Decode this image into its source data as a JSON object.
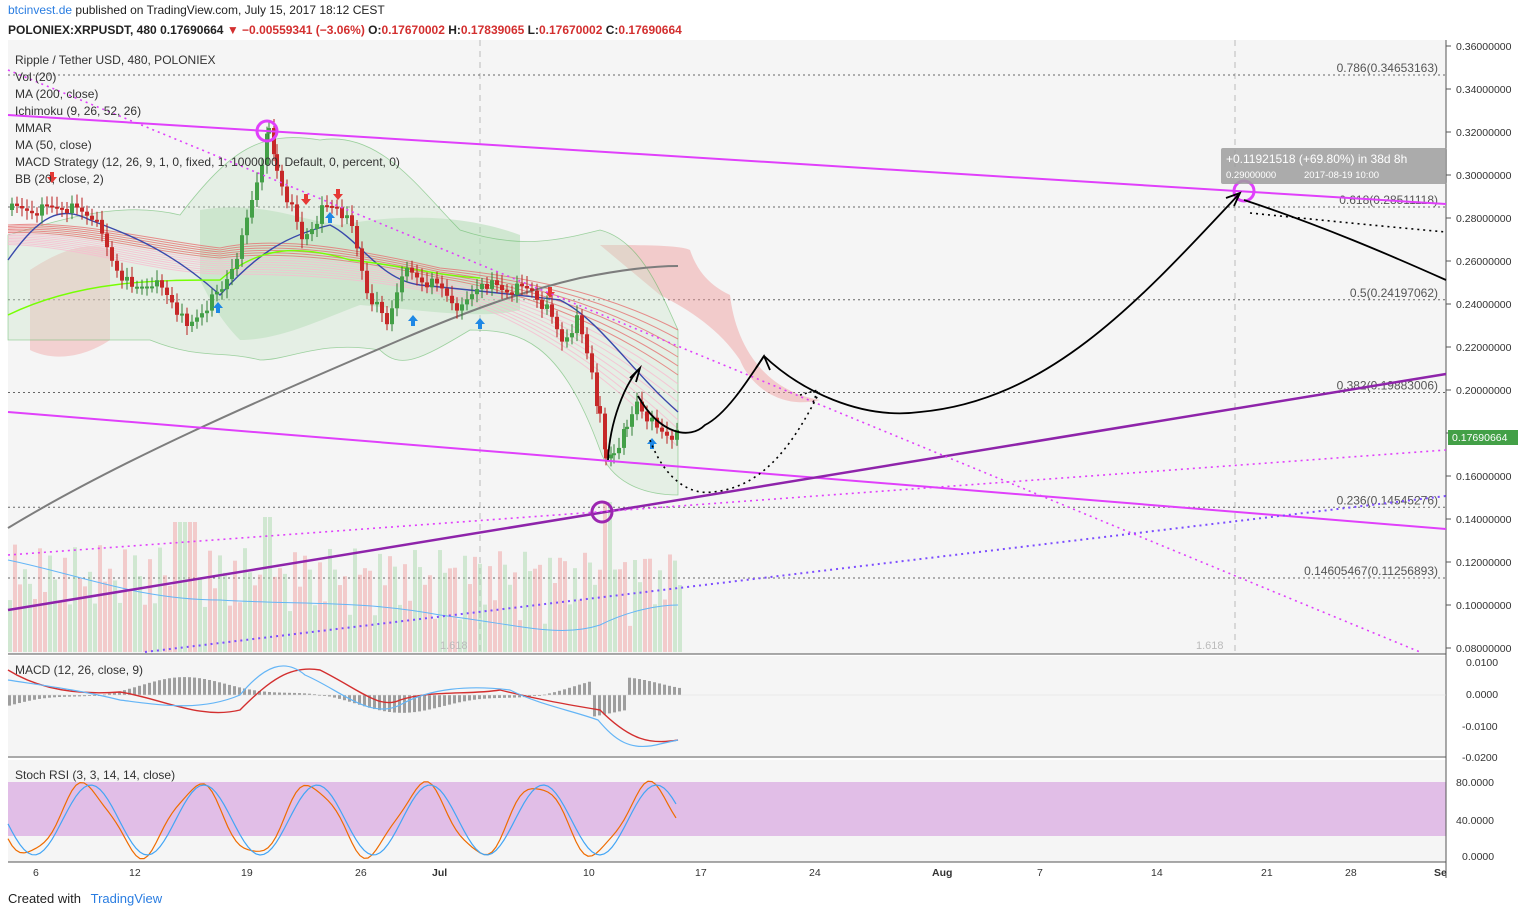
{
  "header": {
    "brand": "btcinvest.de",
    "published": "published on TradingView.com, July 15, 2017 18:12 CEST",
    "symbol": "POLONIEX:XRPUSDT, 480",
    "last": "0.17690664",
    "change_arrow": "▼",
    "change": "−0.00559341 (−3.06%)",
    "o_label": "O:",
    "o": "0.17670002",
    "h_label": "H:",
    "h": "0.17839065",
    "l_label": "L:",
    "l": "0.17670002",
    "c_label": "C:",
    "c": "0.17690664"
  },
  "legend": [
    "Ripple / Tether USD, 480, POLONIEX",
    "Vol (20)",
    "MA (200, close)",
    "Ichimoku (9, 26, 52, 26)",
    "MMAR",
    "MA (50, close)",
    "MACD Strategy (12, 26, 9, 1, 0, fixed, 1, 1000000, Default, 0, percent, 0)",
    "BB (20, close, 2)"
  ],
  "price_axis_labels": [
    "0.36000000",
    "0.34000000",
    "0.32000000",
    "0.30000000",
    "0.28000000",
    "0.26000000",
    "0.24000000",
    "0.22000000",
    "0.20000000",
    "0.18000000",
    "0.16000000",
    "0.14000000",
    "0.12000000",
    "0.10000000",
    "0.08000000"
  ],
  "current_price_tag": "0.17690664",
  "fib_labels": [
    {
      "text": "0.786(0.34653163)",
      "price": 0.34653163
    },
    {
      "text": "0.618(0.28511118)",
      "price": 0.28511118
    },
    {
      "text": "0.5(0.24197062)",
      "price": 0.24197062
    },
    {
      "text": "0.382(0.19883006)",
      "price": 0.19883006
    },
    {
      "text": "0.236(0.14545276)",
      "price": 0.14545276
    },
    {
      "text": "0.14605467(0.11256893)",
      "price": 0.11256893
    }
  ],
  "fib_faint": [
    "1.618",
    "1.618"
  ],
  "measure_box": {
    "line1": "+0.11921518 (+69.80%) in 38d 8h",
    "line2": "0.29000000",
    "line3": "2017-08-19  10:00"
  },
  "macd": {
    "label": "MACD (12, 26, close, 9)",
    "axis": [
      "0.0100",
      "0.0000",
      "-0.0100",
      "-0.0200"
    ]
  },
  "rsi": {
    "label": "Stoch RSI (3, 3, 14, 14, close)",
    "axis": [
      "80.0000",
      "40.0000",
      "0.0000"
    ]
  },
  "time_axis": [
    "6",
    "12",
    "19",
    "26",
    "Jul",
    "10",
    "17",
    "24",
    "Aug",
    "7",
    "14",
    "21",
    "28",
    "Se"
  ],
  "footer": {
    "created": "Created with",
    "tv": "TradingView"
  },
  "colors": {
    "up": "#43a047",
    "down": "#c62828",
    "channel": "#e040fb",
    "support": "#8e24aa",
    "rsi_band": "#e1bee7"
  },
  "chart_data": {
    "type": "candlestick",
    "symbol": "POLONIEX:XRPUSDT",
    "interval": "480",
    "last_price": 0.17690664,
    "ohlc_last": {
      "open": 0.17670002,
      "high": 0.17839065,
      "low": 0.17670002,
      "close": 0.17690664
    },
    "ylim": [
      0.08,
      0.36
    ],
    "fib_levels": [
      0.34653163,
      0.28511118,
      0.24197062,
      0.19883006,
      0.14545276,
      0.11256893
    ],
    "target_price": 0.29,
    "target_date": "2017-08-19 10:00"
  }
}
